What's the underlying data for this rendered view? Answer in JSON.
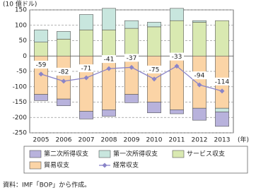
{
  "chart_data": {
    "type": "bar",
    "y_unit_label": "(10 億ドル)",
    "x_unit_label": "(年)",
    "categories": [
      "2005",
      "2006",
      "2007",
      "2008",
      "2009",
      "2010",
      "2011",
      "2012",
      "2013"
    ],
    "series": [
      {
        "name": "第二次所得収支",
        "type": "bar",
        "color": "#b8b2dc",
        "values": [
          -20,
          -22,
          -25,
          -21,
          -27,
          -35,
          -13,
          -39,
          -47
        ]
      },
      {
        "name": "第一次所得収支",
        "type": "bar",
        "color": "#c8e6de",
        "values": [
          40,
          25,
          50,
          70,
          25,
          15,
          40,
          5,
          -12
        ]
      },
      {
        "name": "サービス収支",
        "type": "bar",
        "color": "#d9e9b1",
        "values": [
          45,
          55,
          85,
          85,
          90,
          95,
          115,
          110,
          115
        ]
      },
      {
        "name": "貿易収支",
        "type": "bar",
        "color": "#fbd4a6",
        "values": [
          -125,
          -140,
          -180,
          -175,
          -125,
          -150,
          -175,
          -170,
          -170
        ]
      },
      {
        "name": "経常収支",
        "type": "line",
        "color": "#8a84c8",
        "values": [
          -59,
          -82,
          -71,
          -41,
          -37,
          -75,
          -33,
          -94,
          -114
        ]
      }
    ],
    "ylim": [
      -250,
      150
    ],
    "yticks": [
      -250,
      -200,
      -150,
      -100,
      -50,
      0,
      50,
      100,
      150
    ],
    "grid": true,
    "source": "資料：IMF「BOP」から作成。"
  }
}
